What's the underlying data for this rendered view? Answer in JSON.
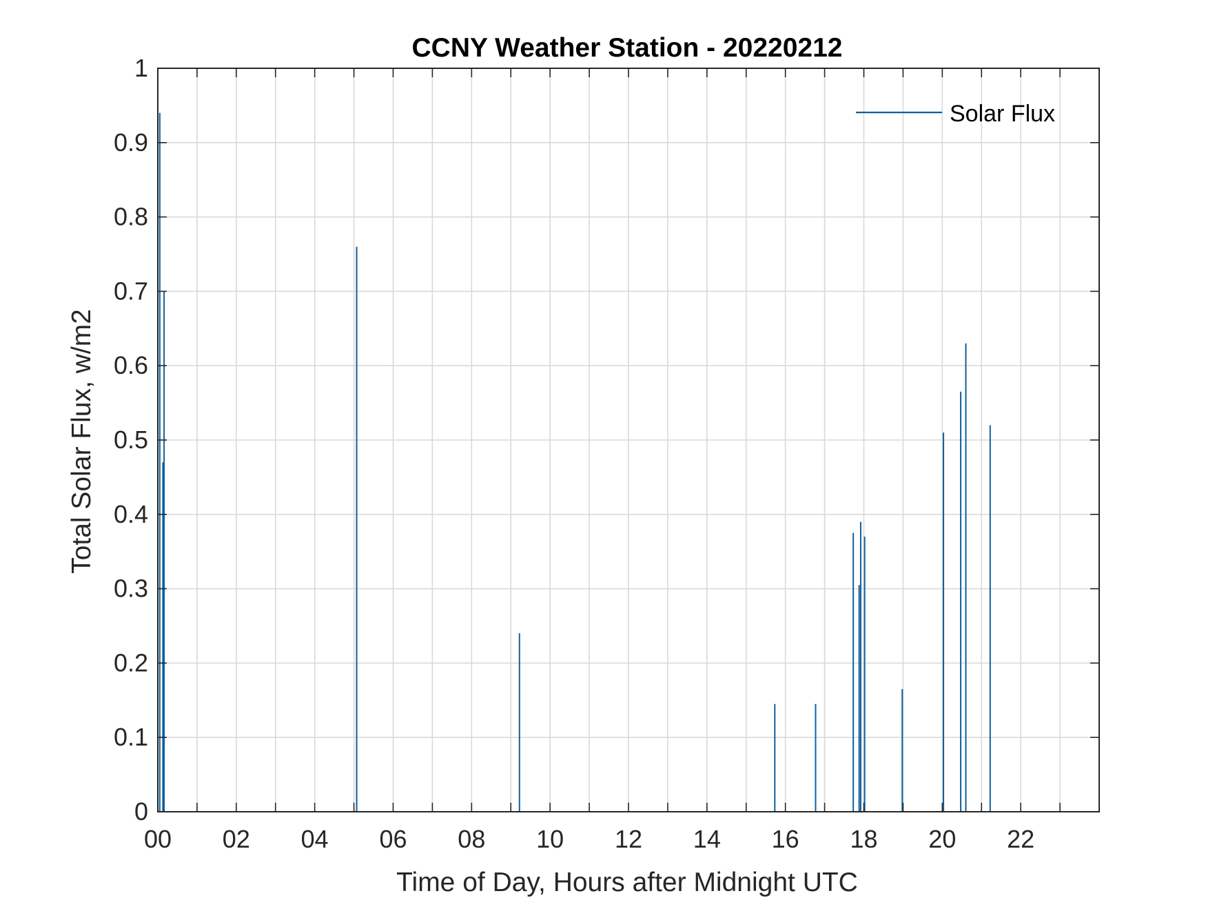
{
  "chart_data": {
    "type": "bar",
    "title": "CCNY Weather Station - 20220212",
    "xlabel": "Time of Day, Hours after Midnight UTC",
    "ylabel": "Total Solar Flux, w/m2",
    "xlim": [
      0,
      24
    ],
    "ylim": [
      0,
      1
    ],
    "grid": true,
    "legend_position": "top-right",
    "x_ticks": [
      0,
      2,
      4,
      6,
      8,
      10,
      12,
      14,
      16,
      18,
      20,
      22
    ],
    "x_tick_labels": [
      "00",
      "02",
      "04",
      "06",
      "08",
      "10",
      "12",
      "14",
      "16",
      "18",
      "20",
      "22"
    ],
    "y_ticks": [
      0,
      0.1,
      0.2,
      0.3,
      0.4,
      0.5,
      0.6,
      0.7,
      0.8,
      0.9,
      1
    ],
    "y_tick_labels": [
      "0",
      "0.1",
      "0.2",
      "0.3",
      "0.4",
      "0.5",
      "0.6",
      "0.7",
      "0.8",
      "0.9",
      "1"
    ],
    "series": [
      {
        "name": "Solar Flux",
        "color": "#0e5f9c",
        "x": [
          0.05,
          0.13,
          0.16,
          5.07,
          9.22,
          15.73,
          16.77,
          17.73,
          17.88,
          17.92,
          18.02,
          18.98,
          20.03,
          20.47,
          20.6,
          21.22
        ],
        "values": [
          0.94,
          0.47,
          0.7,
          0.76,
          0.24,
          0.145,
          0.145,
          0.375,
          0.305,
          0.39,
          0.37,
          0.165,
          0.51,
          0.565,
          0.63,
          0.52
        ]
      }
    ]
  }
}
